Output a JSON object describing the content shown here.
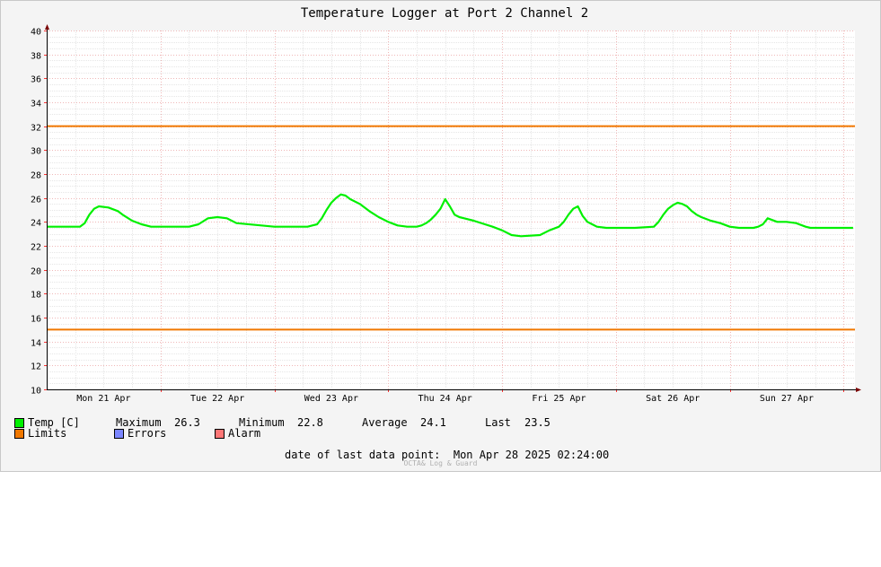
{
  "chart_data": {
    "type": "line",
    "title": "Temperature Logger at Port 2 Channel 2",
    "ylim": [
      10,
      40
    ],
    "y_ticks": [
      10,
      12,
      14,
      16,
      18,
      20,
      22,
      24,
      26,
      28,
      30,
      32,
      34,
      36,
      38,
      40
    ],
    "x_tick_labels": [
      "Mon 21 Apr",
      "Tue 22 Apr",
      "Wed 23 Apr",
      "Thu 24 Apr",
      "Fri 25 Apr",
      "Sat 26 Apr",
      "Sun 27 Apr"
    ],
    "x_unit": "hours since start of Mon 21 Apr",
    "xlim": [
      0,
      170.4
    ],
    "grid": true,
    "limits": {
      "upper": 32,
      "lower": 15,
      "color": "#f07800"
    },
    "series": [
      {
        "name": "Temp [C]",
        "color": "#00f000",
        "x": [
          0,
          7,
          8,
          9,
          10,
          11,
          13,
          15,
          16,
          18,
          20,
          22,
          24,
          30,
          32,
          34,
          36,
          38,
          40,
          48,
          55,
          56,
          57,
          58,
          59,
          60,
          61,
          62,
          63,
          64,
          66,
          68,
          70,
          72,
          74,
          76,
          78,
          79,
          80,
          81,
          82,
          83,
          84,
          85,
          86,
          87,
          88,
          90,
          94,
          96,
          98,
          100,
          104,
          106,
          108,
          109,
          110,
          111,
          112,
          113,
          114,
          115,
          116,
          118,
          120,
          124,
          128,
          129,
          130,
          131,
          132,
          133,
          134,
          135,
          136,
          137,
          138,
          140,
          142,
          144,
          146,
          147,
          148,
          149,
          150,
          151,
          152,
          154,
          156,
          158,
          160,
          161,
          162,
          163,
          164,
          165,
          166,
          168,
          170
        ],
        "y": [
          23.6,
          23.6,
          23.9,
          24.6,
          25.1,
          25.3,
          25.2,
          24.9,
          24.6,
          24.1,
          23.8,
          23.6,
          23.6,
          23.6,
          23.8,
          24.3,
          24.4,
          24.3,
          23.9,
          23.6,
          23.6,
          23.7,
          23.8,
          24.3,
          25.0,
          25.6,
          26.0,
          26.3,
          26.2,
          25.9,
          25.5,
          24.9,
          24.4,
          24.0,
          23.7,
          23.6,
          23.6,
          23.7,
          23.9,
          24.2,
          24.6,
          25.1,
          25.9,
          25.3,
          24.6,
          24.4,
          24.3,
          24.1,
          23.6,
          23.3,
          22.9,
          22.8,
          22.9,
          23.3,
          23.6,
          24.0,
          24.6,
          25.1,
          25.3,
          24.5,
          24.0,
          23.8,
          23.6,
          23.5,
          23.5,
          23.5,
          23.6,
          24.0,
          24.6,
          25.1,
          25.4,
          25.6,
          25.5,
          25.3,
          24.9,
          24.6,
          24.4,
          24.1,
          23.9,
          23.6,
          23.5,
          23.5,
          23.5,
          23.5,
          23.6,
          23.8,
          24.3,
          24.0,
          24.0,
          23.9,
          23.6,
          23.5,
          23.5,
          23.5,
          23.5,
          23.5,
          23.5,
          23.5,
          23.5
        ]
      }
    ]
  },
  "legend": {
    "temp_label": "Temp [C]",
    "temp_color": "#00f000",
    "maximum_label": "Maximum",
    "maximum_value": "26.3",
    "minimum_label": "Minimum",
    "minimum_value": "22.8",
    "average_label": "Average",
    "average_value": "24.1",
    "last_label": "Last",
    "last_value": "23.5",
    "limits_label": "Limits",
    "limits_color": "#f07800",
    "errors_label": "Errors",
    "errors_color": "#7b86ff",
    "alarm_label": "Alarm",
    "alarm_color": "#ff7777"
  },
  "footer": {
    "last_point_label": "date of last data point:",
    "last_point_value": "Mon Apr 28 2025 02:24:00",
    "brand": "OCTA& Log & Guard"
  }
}
